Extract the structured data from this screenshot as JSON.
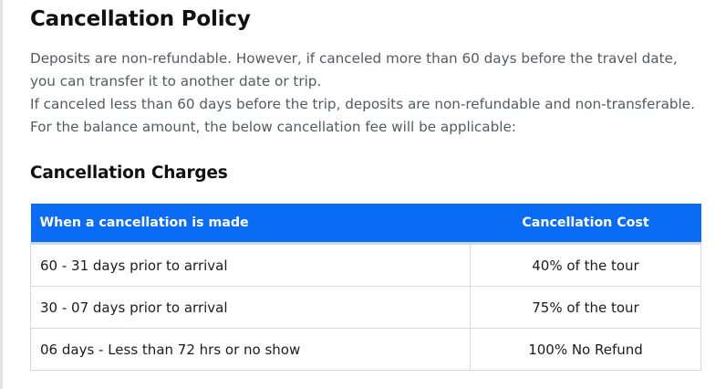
{
  "policy": {
    "title": "Cancellation Policy",
    "paragraph_1": "Deposits are non-refundable. However, if canceled more than 60 days before the travel date, you can transfer it to another date or trip.",
    "paragraph_2": "If canceled less than 60 days before the trip, deposits are non-refundable and non-transferable. For the balance amount, the below cancellation fee will be applicable:"
  },
  "charges": {
    "title": "Cancellation Charges",
    "columns": [
      "When a cancellation is made",
      "Cancellation Cost"
    ],
    "rows": [
      {
        "when": "60 - 31 days prior to arrival",
        "cost": "40% of the tour"
      },
      {
        "when": "30 - 07 days prior to arrival",
        "cost": "75% of the tour"
      },
      {
        "when": "06 days - Less than 72 hrs or no show",
        "cost": "100% No Refund"
      }
    ]
  },
  "colors": {
    "header_background": "#0a6cf5",
    "header_text": "#ffffff",
    "body_text": "#555a60"
  }
}
